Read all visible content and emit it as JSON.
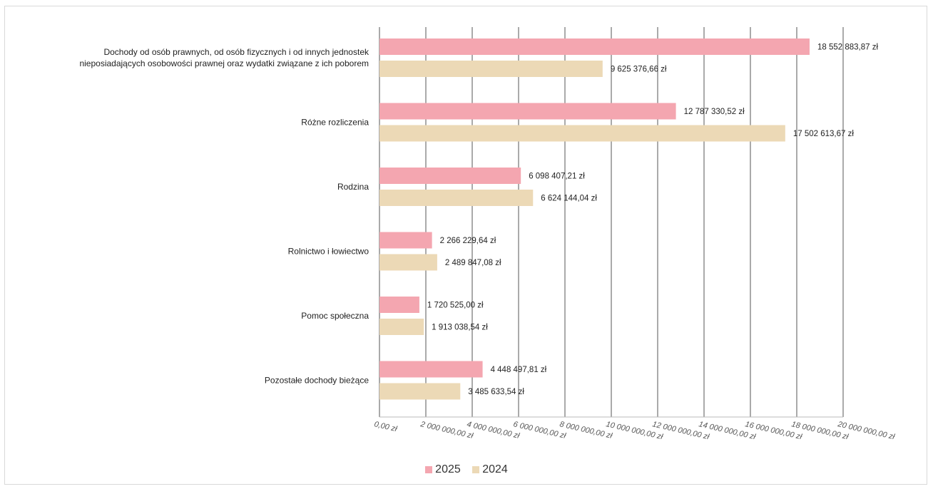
{
  "chart_data": {
    "type": "bar",
    "orientation": "horizontal",
    "categories": [
      [
        "Dochody od osób prawnych, od osób fizycznych i od innych jednostek",
        "nieposiadających osobowości prawnej oraz wydatki związane z ich poborem"
      ],
      [
        "Różne rozliczenia"
      ],
      [
        "Rodzina"
      ],
      [
        "Rolnictwo i łowiectwo"
      ],
      [
        "Pomoc społeczna"
      ],
      [
        "Pozostałe dochody bieżące"
      ]
    ],
    "series": [
      {
        "name": "2025",
        "color": "#f4a6b0",
        "values": [
          18552883.87,
          12787330.52,
          6098407.21,
          2266229.64,
          1720525.0,
          4448497.81
        ],
        "labels": [
          "18 552 883,87 zł",
          "12 787 330,52 zł",
          "6 098 407,21 zł",
          "2 266 229,64 zł",
          "1 720 525,00 zł",
          "4 448 497,81 zł"
        ]
      },
      {
        "name": "2024",
        "color": "#ecd9b6",
        "values": [
          9625376.66,
          17502613.67,
          6624144.04,
          2489847.08,
          1913038.54,
          3485633.54
        ],
        "labels": [
          "9 625 376,66 zł",
          "17 502 613,67 zł",
          "6 624 144,04 zł",
          "2 489 847,08 zł",
          "1 913 038,54 zł",
          "3 485 633,54 zł"
        ]
      }
    ],
    "xlim": [
      0,
      20000000
    ],
    "ticks": [
      0,
      2000000,
      4000000,
      6000000,
      8000000,
      10000000,
      12000000,
      14000000,
      16000000,
      18000000,
      20000000
    ],
    "tick_labels": [
      "0,00 zł",
      "2 000 000,00 zł",
      "4 000 000,00 zł",
      "6 000 000,00 zł",
      "8 000 000,00 zł",
      "10 000 000,00 zł",
      "12 000 000,00 zł",
      "14 000 000,00 zł",
      "16 000 000,00 zł",
      "18 000 000,00 zł",
      "20 000 000,00 zł"
    ],
    "grid": true,
    "legend_position": "bottom"
  }
}
